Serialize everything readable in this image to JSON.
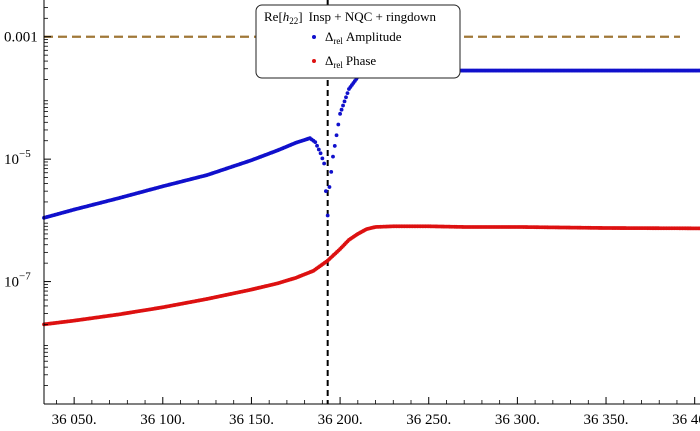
{
  "chart_data": {
    "type": "scatter",
    "title": "",
    "xlabel": "",
    "ylabel": "",
    "xlim": [
      36033,
      36403
    ],
    "ylim_log10": [
      -9.0,
      -2.4
    ],
    "y_scale": "log",
    "grid": false,
    "legend": {
      "placement": "top-center",
      "title_parts": {
        "prefix": "Re[",
        "var": "h",
        "sub": "22",
        "suffix": "]",
        "rest": "Insp + NQC + ringdown"
      },
      "entries": [
        {
          "symbol": "Δ",
          "sub": "rel",
          "text": "Amplitude",
          "color": "#1010cc"
        },
        {
          "symbol": "Δ",
          "sub": "rel",
          "text": "Phase",
          "color": "#dd1111"
        }
      ]
    },
    "x_ticks": [
      {
        "value": 36050,
        "label": "36 050."
      },
      {
        "value": 36100,
        "label": "36 100."
      },
      {
        "value": 36150,
        "label": "36 150."
      },
      {
        "value": 36200,
        "label": "36 200."
      },
      {
        "value": 36250,
        "label": "36 250."
      },
      {
        "value": 36300,
        "label": "36 300."
      },
      {
        "value": 36350,
        "label": "36 350."
      },
      {
        "value": 36400,
        "label": "36 400."
      }
    ],
    "y_ticks": [
      {
        "value": 0.001,
        "label": "0.001",
        "exp": ""
      },
      {
        "value": 1e-05,
        "label": "10",
        "exp": "−5"
      },
      {
        "value": 1e-07,
        "label": "10",
        "exp": "−7"
      }
    ],
    "reference_lines": [
      {
        "orientation": "horizontal",
        "value": 0.001,
        "style": "dashed",
        "color": "#a07838"
      },
      {
        "orientation": "vertical",
        "value": 36193,
        "style": "dashed",
        "color": "#000000"
      }
    ],
    "series": [
      {
        "name": "Δrel Amplitude",
        "color": "#1010cc",
        "x": [
          36033,
          36050,
          36075,
          36100,
          36125,
          36150,
          36165,
          36175,
          36183,
          36186,
          36189,
          36191,
          36192,
          36193,
          36194,
          36196,
          36200,
          36205,
          36210,
          36215,
          36220,
          36230,
          36250,
          36300,
          36350,
          36403
        ],
        "y": [
          1.1e-06,
          1.5e-06,
          2.3e-06,
          3.6e-06,
          5.5e-06,
          9.6e-06,
          1.4e-05,
          1.85e-05,
          2.2e-05,
          1.9e-05,
          1.25e-05,
          8.5e-06,
          3e-06,
          1.2e-06,
          3.5e-06,
          1.1e-05,
          5.5e-05,
          0.00014,
          0.00022,
          0.00026,
          0.000275,
          0.00028,
          0.00028,
          0.00028,
          0.00028,
          0.00028
        ]
      },
      {
        "name": "Δrel Phase",
        "color": "#dd1111",
        "x": [
          36033,
          36050,
          36075,
          36100,
          36125,
          36150,
          36165,
          36175,
          36185,
          36193,
          36200,
          36205,
          36210,
          36215,
          36220,
          36230,
          36250,
          36270,
          36300,
          36350,
          36403
        ],
        "y": [
          2e-08,
          2.3e-08,
          2.9e-08,
          3.8e-08,
          5.2e-08,
          7.4e-08,
          9.4e-08,
          1.15e-07,
          1.5e-07,
          2.2e-07,
          3.4e-07,
          4.8e-07,
          6e-07,
          7.2e-07,
          7.8e-07,
          8e-07,
          8e-07,
          7.8e-07,
          7.8e-07,
          7.5e-07,
          7.4e-07
        ]
      }
    ]
  }
}
